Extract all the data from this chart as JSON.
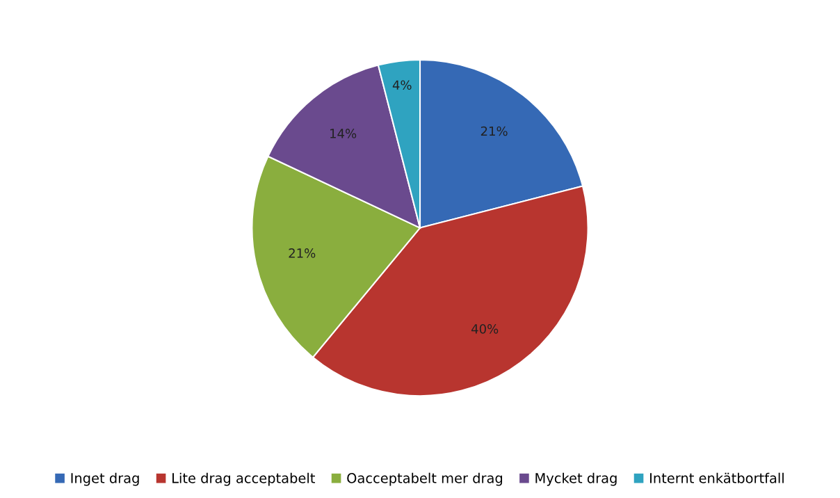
{
  "chart_data": {
    "type": "pie",
    "categories": [
      "Inget drag",
      "Lite drag acceptabelt",
      "Oacceptabelt mer drag",
      "Mycket drag",
      "Internt enkätbortfall"
    ],
    "values": [
      21,
      40,
      21,
      14,
      4
    ],
    "colors": [
      "#3569b5",
      "#b8352f",
      "#8aae3e",
      "#6a4a8e",
      "#2fa3c0"
    ],
    "value_labels": [
      "21%",
      "40%",
      "21%",
      "14%",
      "4%"
    ],
    "legend": "bottom"
  }
}
